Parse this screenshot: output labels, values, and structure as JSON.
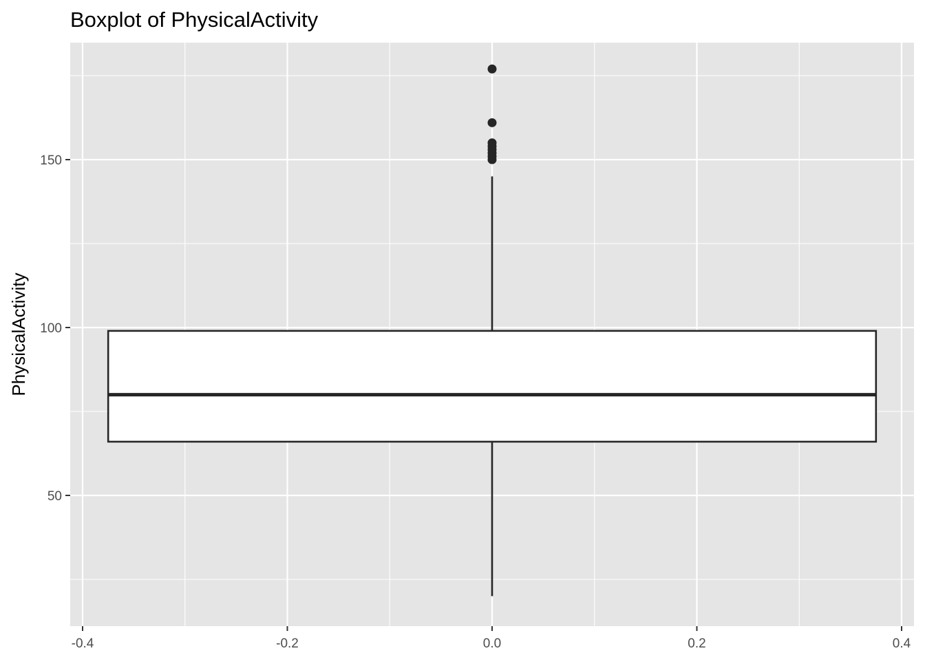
{
  "chart_data": {
    "type": "boxplot",
    "title": "Boxplot of PhysicalActivity",
    "xlabel": "",
    "ylabel": "PhysicalActivity",
    "xlim": [
      -0.4,
      0.4
    ],
    "ylim": [
      10,
      184
    ],
    "x_ticks": [
      -0.4,
      -0.2,
      0.0,
      0.2,
      0.4
    ],
    "x_tick_labels": [
      "-0.4",
      "-0.2",
      "0.0",
      "0.2",
      "0.4"
    ],
    "y_ticks": [
      50,
      100,
      150
    ],
    "y_tick_labels": [
      "50",
      "100",
      "150"
    ],
    "grid": true,
    "box": {
      "x": 0.0,
      "x_min": -0.375,
      "x_max": 0.375,
      "whisker_low": 20,
      "q1": 66,
      "median": 80,
      "q3": 99,
      "whisker_high": 145
    },
    "outliers": [
      150,
      151,
      152,
      153,
      154,
      155,
      161,
      177
    ],
    "colors": {
      "panel": "#e5e5e5",
      "grid": "#ffffff",
      "box_fill": "#ffffff",
      "box_line": "#262626",
      "outlier": "#262626"
    }
  }
}
